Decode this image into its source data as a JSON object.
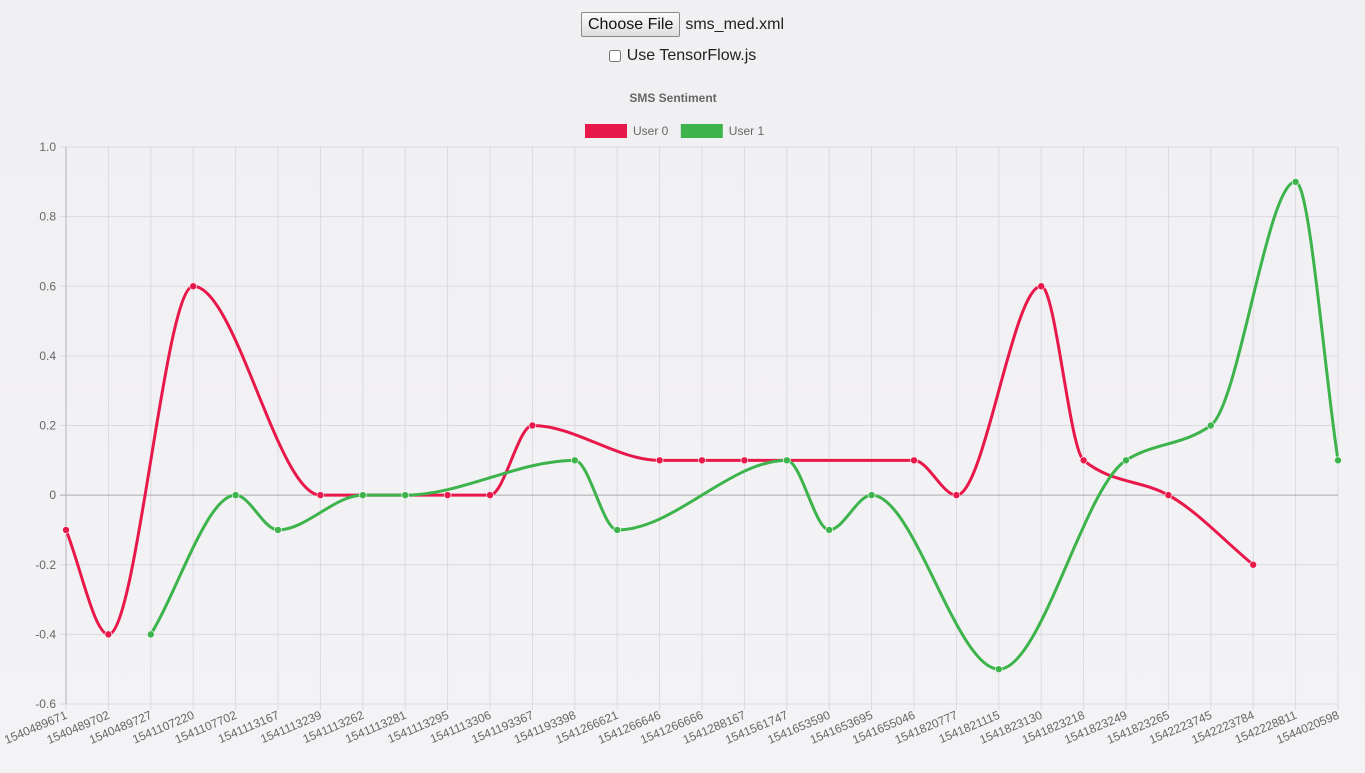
{
  "file_input": {
    "button_label": "Choose File",
    "file_name": "sms_med.xml"
  },
  "options": {
    "tensorflow_label": "Use TensorFlow.js",
    "tensorflow_checked": false
  },
  "chart_data": {
    "type": "line",
    "title": "SMS Sentiment",
    "legend_position": "top",
    "grid": true,
    "ylim": [
      -0.6,
      1.0
    ],
    "y_ticks": [
      "1.0",
      "0.8",
      "0.6",
      "0.4",
      "0.2",
      "0",
      "-0.2",
      "-0.4",
      "-0.6"
    ],
    "categories": [
      "1540489671",
      "1540489702",
      "1540489727",
      "1541107220",
      "1541107702",
      "1541113167",
      "1541113239",
      "1541113262",
      "1541113281",
      "1541113295",
      "1541113306",
      "1541193367",
      "1541193398",
      "1541266621",
      "1541266646",
      "1541266666",
      "1541288167",
      "1541561747",
      "1541653590",
      "1541653695",
      "1541655046",
      "1541820777",
      "1541821115",
      "1541823130",
      "1541823218",
      "1541823249",
      "1541823265",
      "1542223745",
      "1542223784",
      "1542228811",
      "1544020598"
    ],
    "series": [
      {
        "name": "User 0",
        "color": "#e8194a",
        "values": [
          -0.1,
          -0.4,
          null,
          0.6,
          null,
          null,
          0,
          null,
          null,
          0,
          0,
          0.2,
          null,
          null,
          0.1,
          0.1,
          0.1,
          null,
          null,
          null,
          0.1,
          0,
          null,
          0.6,
          0.1,
          null,
          0,
          null,
          -0.2,
          null,
          null
        ]
      },
      {
        "name": "User 1",
        "color": "#3cb44b",
        "values": [
          null,
          null,
          -0.4,
          null,
          0,
          -0.1,
          null,
          0,
          0,
          null,
          null,
          null,
          0.1,
          -0.1,
          null,
          null,
          null,
          0.1,
          -0.1,
          0,
          null,
          null,
          -0.5,
          null,
          null,
          0.1,
          null,
          0.2,
          null,
          0.9,
          0.1
        ]
      }
    ]
  }
}
